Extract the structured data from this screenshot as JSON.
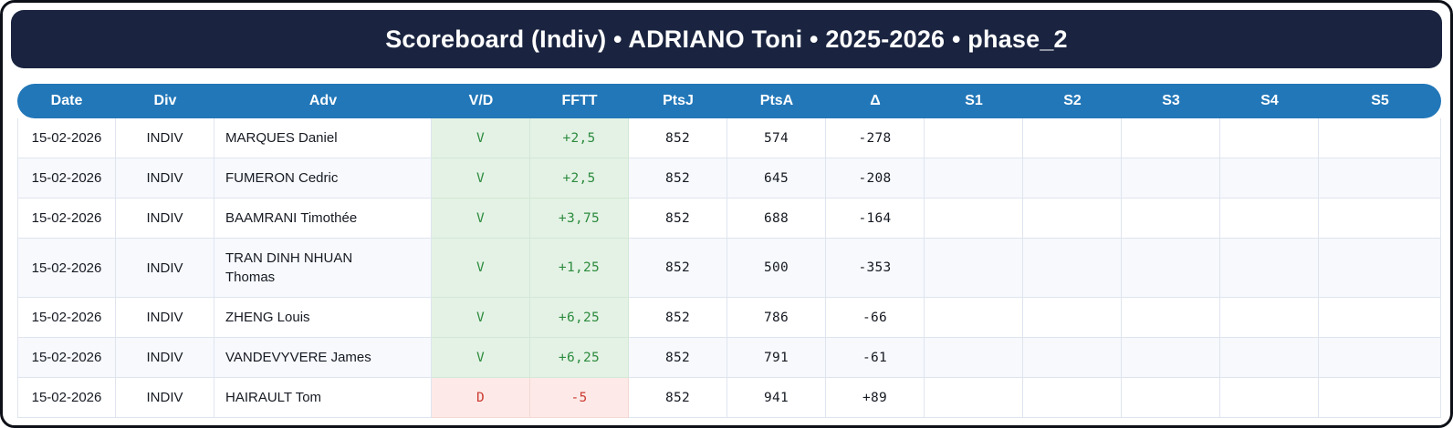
{
  "title": "Scoreboard (Indiv) • ADRIANO Toni • 2025-2026 • phase_2",
  "colors": {
    "navy": "#1a2440",
    "header_blue": "#2277b8",
    "win_text": "#2d8c3f",
    "win_bg": "#e4f2e5",
    "loss_text": "#cb3a31",
    "loss_bg": "#fdeae8"
  },
  "table": {
    "columns": [
      {
        "key": "date",
        "label": "Date"
      },
      {
        "key": "div",
        "label": "Div"
      },
      {
        "key": "adv",
        "label": "Adv"
      },
      {
        "key": "vd",
        "label": "V/D"
      },
      {
        "key": "fftt",
        "label": "FFTT"
      },
      {
        "key": "ptsj",
        "label": "PtsJ"
      },
      {
        "key": "ptsa",
        "label": "PtsA"
      },
      {
        "key": "delta",
        "label": "Δ"
      },
      {
        "key": "s1",
        "label": "S1"
      },
      {
        "key": "s2",
        "label": "S2"
      },
      {
        "key": "s3",
        "label": "S3"
      },
      {
        "key": "s4",
        "label": "S4"
      },
      {
        "key": "s5",
        "label": "S5"
      }
    ],
    "rows": [
      {
        "date": "15-02-2026",
        "div": "INDIV",
        "adv": "MARQUES Daniel",
        "vd": "V",
        "fftt": "+2,5",
        "ptsj": "852",
        "ptsa": "574",
        "delta": "-278",
        "s1": "",
        "s2": "",
        "s3": "",
        "s4": "",
        "s5": "",
        "result": "win"
      },
      {
        "date": "15-02-2026",
        "div": "INDIV",
        "adv": "FUMERON Cedric",
        "vd": "V",
        "fftt": "+2,5",
        "ptsj": "852",
        "ptsa": "645",
        "delta": "-208",
        "s1": "",
        "s2": "",
        "s3": "",
        "s4": "",
        "s5": "",
        "result": "win"
      },
      {
        "date": "15-02-2026",
        "div": "INDIV",
        "adv": "BAAMRANI Timothée",
        "vd": "V",
        "fftt": "+3,75",
        "ptsj": "852",
        "ptsa": "688",
        "delta": "-164",
        "s1": "",
        "s2": "",
        "s3": "",
        "s4": "",
        "s5": "",
        "result": "win"
      },
      {
        "date": "15-02-2026",
        "div": "INDIV",
        "adv": "TRAN DINH NHUAN Thomas",
        "vd": "V",
        "fftt": "+1,25",
        "ptsj": "852",
        "ptsa": "500",
        "delta": "-353",
        "s1": "",
        "s2": "",
        "s3": "",
        "s4": "",
        "s5": "",
        "result": "win"
      },
      {
        "date": "15-02-2026",
        "div": "INDIV",
        "adv": "ZHENG Louis",
        "vd": "V",
        "fftt": "+6,25",
        "ptsj": "852",
        "ptsa": "786",
        "delta": "-66",
        "s1": "",
        "s2": "",
        "s3": "",
        "s4": "",
        "s5": "",
        "result": "win"
      },
      {
        "date": "15-02-2026",
        "div": "INDIV",
        "adv": "VANDEVYVERE James",
        "vd": "V",
        "fftt": "+6,25",
        "ptsj": "852",
        "ptsa": "791",
        "delta": "-61",
        "s1": "",
        "s2": "",
        "s3": "",
        "s4": "",
        "s5": "",
        "result": "win"
      },
      {
        "date": "15-02-2026",
        "div": "INDIV",
        "adv": "HAIRAULT Tom",
        "vd": "D",
        "fftt": "-5",
        "ptsj": "852",
        "ptsa": "941",
        "delta": "+89",
        "s1": "",
        "s2": "",
        "s3": "",
        "s4": "",
        "s5": "",
        "result": "loss"
      }
    ]
  }
}
